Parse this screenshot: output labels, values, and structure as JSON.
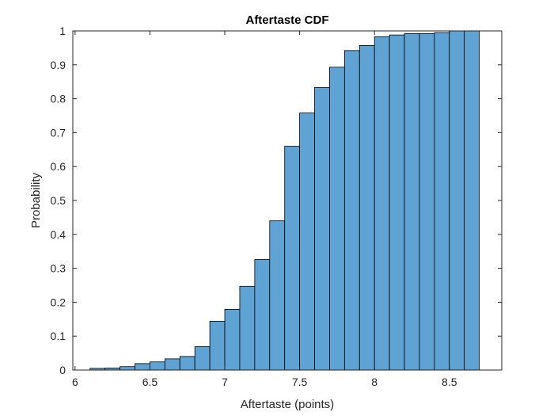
{
  "chart_data": {
    "type": "bar",
    "title": "Aftertaste CDF",
    "xlabel": "Aftertaste (points)",
    "ylabel": "Probability",
    "xlim": [
      5.985,
      8.85
    ],
    "ylim": [
      0,
      1
    ],
    "xticks": [
      "6",
      "6.5",
      "7",
      "7.5",
      "8",
      "8.5"
    ],
    "yticks": [
      "0",
      "0.1",
      "0.2",
      "0.3",
      "0.4",
      "0.5",
      "0.6",
      "0.7",
      "0.8",
      "0.9",
      "1"
    ],
    "grid": false,
    "bin_width": 0.1,
    "bin_edges": [
      6.1,
      6.2,
      6.3,
      6.4,
      6.5,
      6.6,
      6.7,
      6.8,
      6.9,
      7.0,
      7.1,
      7.2,
      7.3,
      7.4,
      7.5,
      7.6,
      7.7,
      7.8,
      7.9,
      8.0,
      8.1,
      8.2,
      8.3,
      8.4,
      8.5,
      8.6,
      8.7
    ],
    "values": [
      0.005,
      0.006,
      0.01,
      0.019,
      0.024,
      0.033,
      0.04,
      0.069,
      0.144,
      0.179,
      0.247,
      0.326,
      0.44,
      0.66,
      0.758,
      0.833,
      0.893,
      0.942,
      0.957,
      0.983,
      0.988,
      0.992,
      0.992,
      0.995,
      1.0,
      1.0
    ],
    "bar_color": "#5fa3d4",
    "edge_color": "#000000"
  }
}
